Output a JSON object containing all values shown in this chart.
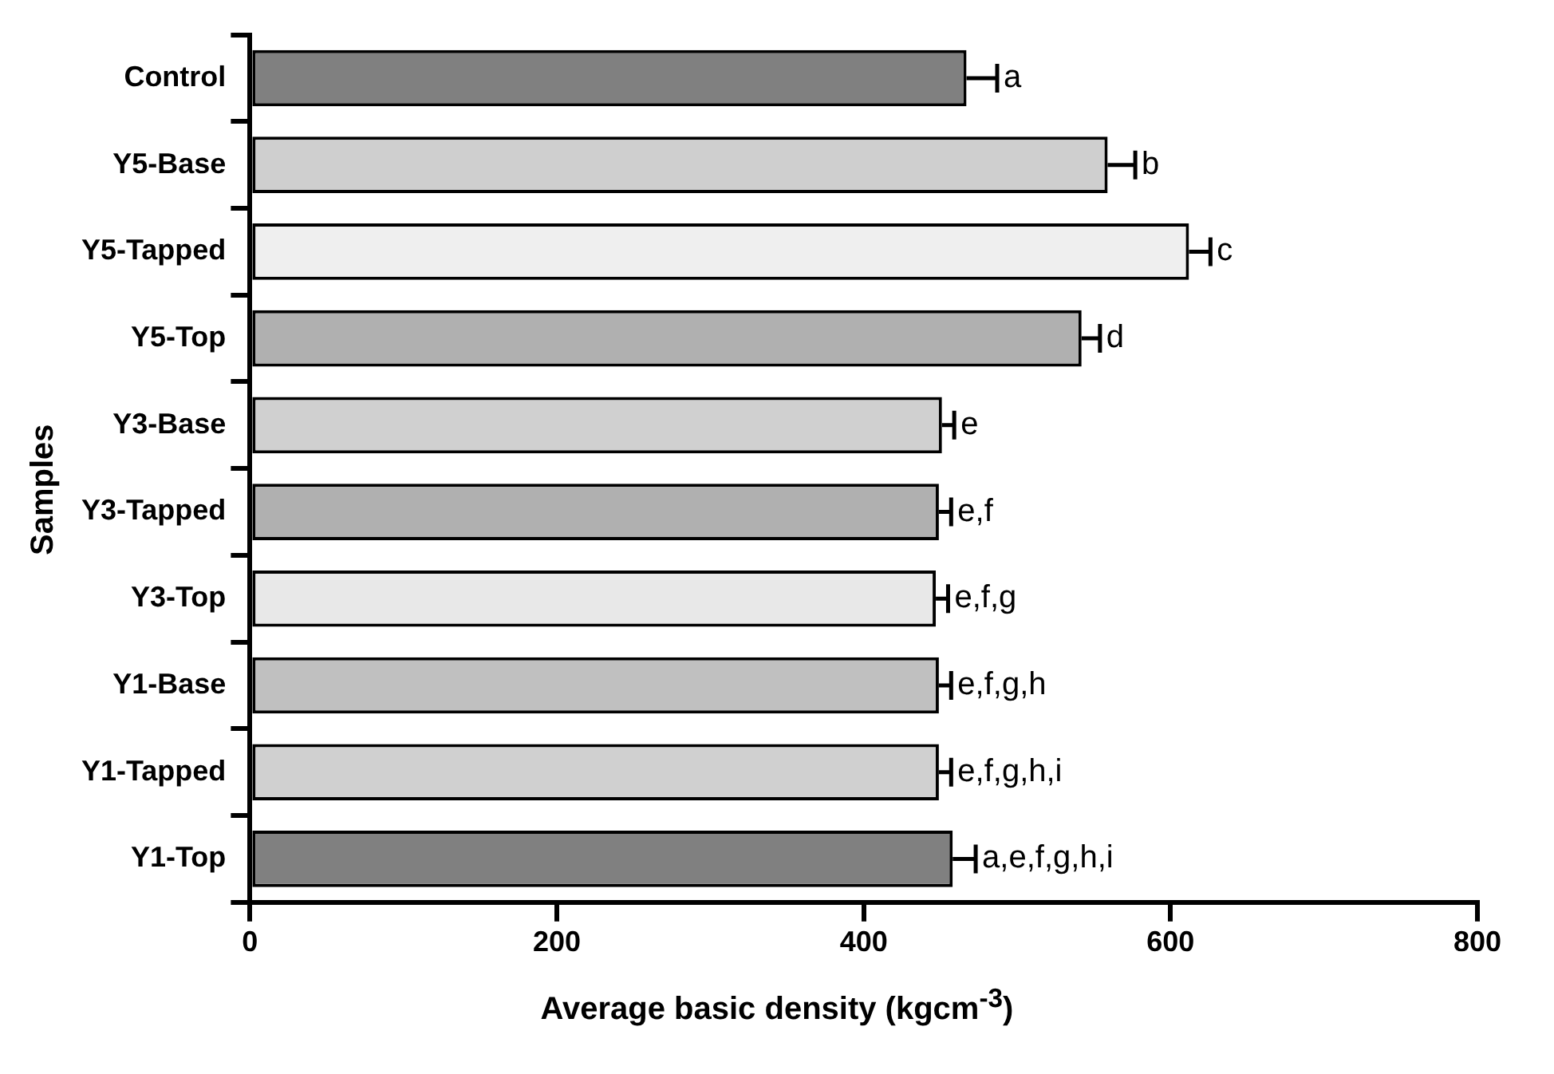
{
  "chart_data": {
    "type": "bar",
    "orientation": "horizontal",
    "xlabel": "Average basic density (kgcm$^{-3}$)",
    "ylabel": "Samples",
    "categories": [
      "Control",
      "Y5-Base",
      "Y5-Tapped",
      "Y5-Top",
      "Y3-Base",
      "Y3-Tapped",
      "Y3-Top",
      "Y1-Base",
      "Y1-Tapped",
      "Y1-Top"
    ],
    "values": [
      467,
      559,
      612,
      542,
      451,
      449,
      447,
      449,
      449,
      458
    ],
    "errors": [
      [
        467,
        487
      ],
      [
        559,
        577
      ],
      [
        612,
        626
      ],
      [
        542,
        554
      ],
      [
        451,
        459
      ],
      [
        449,
        457
      ],
      [
        447,
        455
      ],
      [
        449,
        457
      ],
      [
        449,
        457
      ],
      [
        458,
        473
      ]
    ],
    "colors": [
      "#808080",
      "#cfcfcf",
      "#efefef",
      "#b0b0b0",
      "#d0d0d0",
      "#b0b0b0",
      "#e8e8e8",
      "#c0c0c0",
      "#d0d0d0",
      "#808080"
    ],
    "value_labels": [
      "a",
      "b",
      "c",
      "d",
      "e",
      "e,f",
      "e,f,g",
      "e,f,g,h",
      "e,f,g,h,i",
      "a,e,f,g,h,i"
    ],
    "xlim": [
      0,
      800
    ],
    "xticks": [
      0,
      200,
      400,
      600,
      800
    ],
    "grid": false,
    "legend": false
  }
}
